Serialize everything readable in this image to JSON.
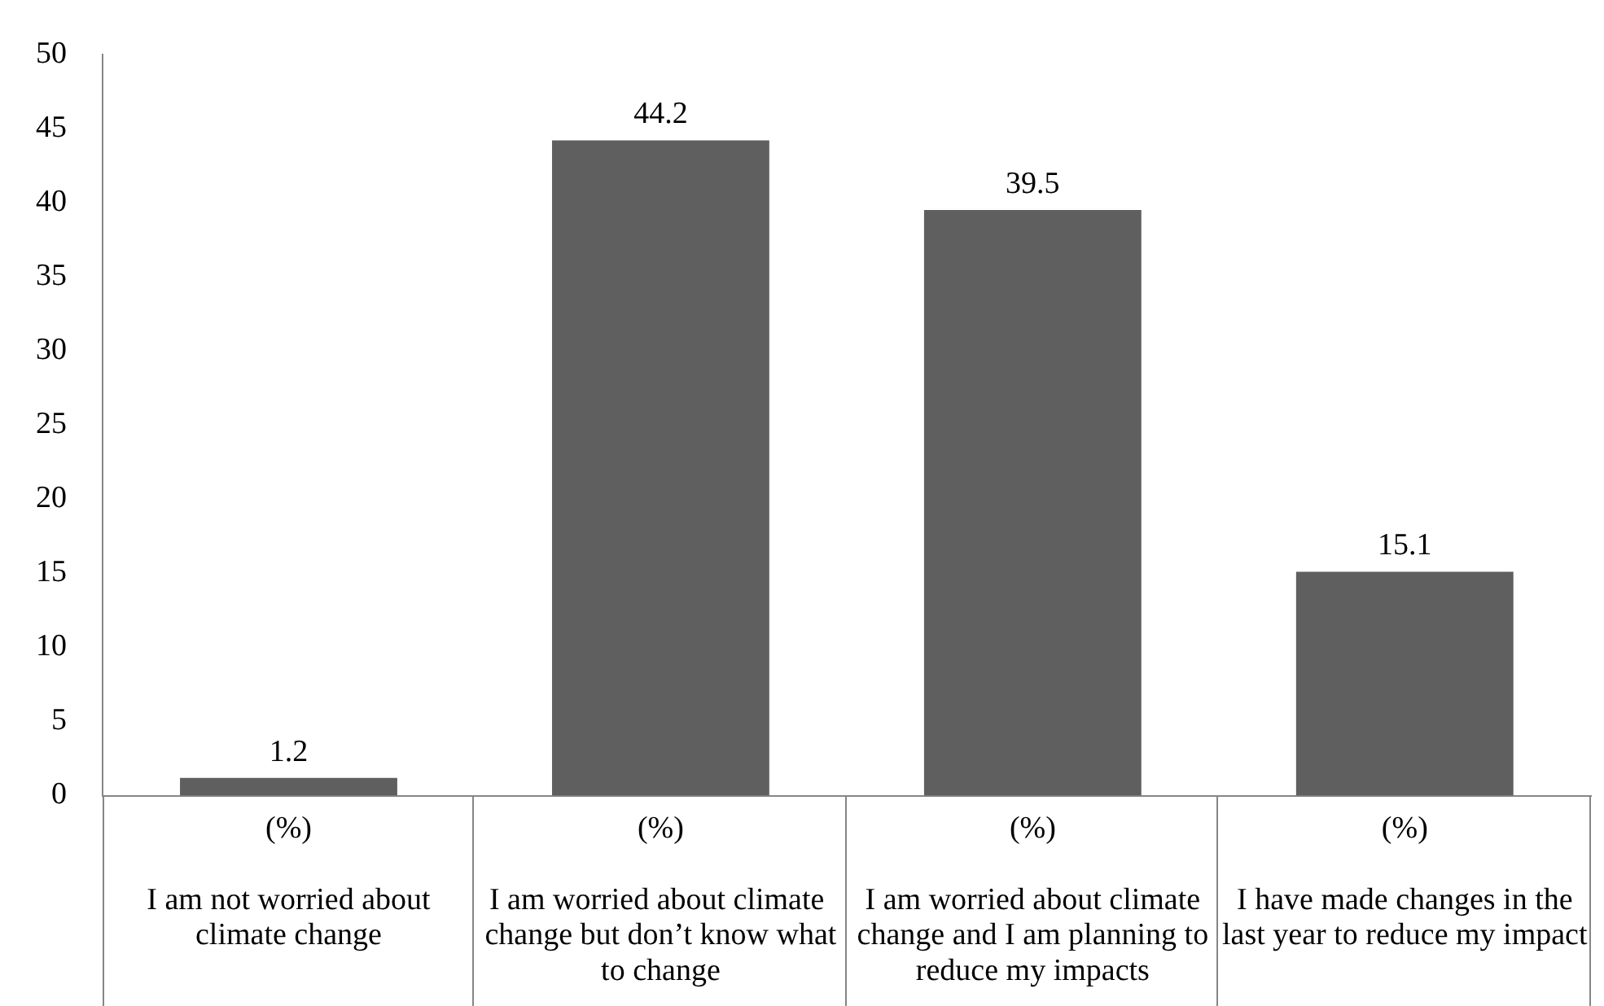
{
  "chart_data": {
    "type": "bar",
    "xlabel": "(%)",
    "categories": [
      "I am not worried about climate change",
      "I am worried about climate  change but don’t know what to change",
      "I am worried about climate change and I am planning to reduce my impacts",
      "I have made changes in the last year to reduce my impact"
    ],
    "values": [
      1.2,
      44.2,
      39.5,
      15.1
    ],
    "color": "#5f5f5f",
    "ylim": [
      0,
      50
    ],
    "yticks": [
      0,
      5,
      10,
      15,
      20,
      25,
      30,
      35,
      40,
      45,
      50
    ],
    "grid": false,
    "data_labels": true
  }
}
